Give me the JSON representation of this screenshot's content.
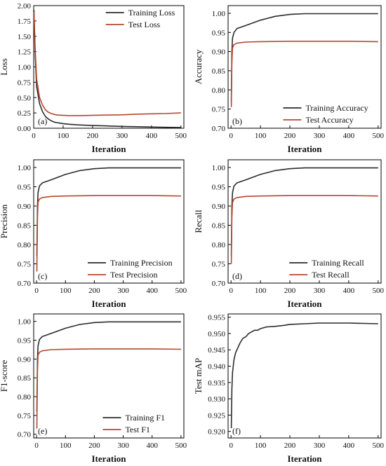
{
  "colors": {
    "train": "#2b2b2b",
    "test": "#b5482f",
    "axis": "#000000"
  },
  "chart_data": [
    {
      "type": "line",
      "tag": "(a)",
      "xlabel": "Iteration",
      "ylabel": "Loss",
      "xlim": [
        0,
        510
      ],
      "ylim": [
        0,
        2.0
      ],
      "xticks": [
        "0",
        "100",
        "200",
        "300",
        "400",
        "500"
      ],
      "yticks": [
        "0.00",
        "0.25",
        "0.50",
        "0.75",
        "1.00",
        "1.25",
        "1.50",
        "1.75",
        "2.00"
      ],
      "legend": "top-right",
      "series": [
        {
          "name": "Training Loss",
          "color": "#2b2b2b",
          "x": [
            1,
            5,
            10,
            20,
            30,
            40,
            50,
            60,
            70,
            80,
            100,
            120,
            150,
            200,
            250,
            300,
            350,
            400,
            450,
            500
          ],
          "y": [
            1.93,
            1.2,
            0.68,
            0.4,
            0.27,
            0.19,
            0.15,
            0.12,
            0.1,
            0.09,
            0.075,
            0.065,
            0.055,
            0.045,
            0.038,
            0.03,
            0.025,
            0.02,
            0.015,
            0.012
          ]
        },
        {
          "name": "Test Loss",
          "color": "#b5482f",
          "x": [
            1,
            5,
            10,
            20,
            30,
            40,
            50,
            60,
            70,
            80,
            100,
            120,
            150,
            200,
            250,
            300,
            350,
            400,
            450,
            500
          ],
          "y": [
            1.9,
            1.3,
            0.8,
            0.5,
            0.38,
            0.3,
            0.26,
            0.24,
            0.225,
            0.215,
            0.21,
            0.205,
            0.205,
            0.21,
            0.215,
            0.22,
            0.23,
            0.235,
            0.24,
            0.25
          ]
        }
      ]
    },
    {
      "type": "line",
      "tag": "(b)",
      "xlabel": "Iteration",
      "ylabel": "Accuracy",
      "xlim": [
        -10,
        510
      ],
      "ylim": [
        0.7,
        1.02
      ],
      "xticks": [
        "0",
        "100",
        "200",
        "300",
        "400",
        "500"
      ],
      "yticks": [
        "0.70",
        "0.75",
        "0.80",
        "0.85",
        "0.90",
        "0.95",
        "1.00"
      ],
      "legend": "bottom-right",
      "series": [
        {
          "name": "Training Accuracy",
          "color": "#2b2b2b",
          "x": [
            1,
            3,
            5,
            10,
            20,
            50,
            100,
            150,
            200,
            250,
            300,
            400,
            500
          ],
          "y": [
            0.77,
            0.9,
            0.935,
            0.95,
            0.96,
            0.968,
            0.982,
            0.992,
            0.997,
            0.999,
            0.999,
            0.999,
            0.999
          ]
        },
        {
          "name": "Test Accuracy",
          "color": "#b5482f",
          "x": [
            1,
            3,
            5,
            10,
            20,
            50,
            100,
            200,
            300,
            400,
            500
          ],
          "y": [
            0.755,
            0.87,
            0.91,
            0.918,
            0.922,
            0.925,
            0.926,
            0.927,
            0.927,
            0.927,
            0.926
          ]
        }
      ]
    },
    {
      "type": "line",
      "tag": "(c)",
      "xlabel": "Iteration",
      "ylabel": "Precision",
      "xlim": [
        -10,
        510
      ],
      "ylim": [
        0.7,
        1.02
      ],
      "xticks": [
        "0",
        "100",
        "200",
        "300",
        "400",
        "500"
      ],
      "yticks": [
        "0.70",
        "0.75",
        "0.80",
        "0.85",
        "0.90",
        "0.95",
        "1.00"
      ],
      "legend": "bottom-right",
      "series": [
        {
          "name": "Training Precision",
          "color": "#2b2b2b",
          "x": [
            1,
            3,
            5,
            10,
            20,
            50,
            100,
            150,
            200,
            250,
            300,
            400,
            500
          ],
          "y": [
            0.77,
            0.9,
            0.935,
            0.952,
            0.96,
            0.968,
            0.982,
            0.992,
            0.997,
            0.999,
            0.999,
            0.999,
            0.999
          ]
        },
        {
          "name": "Test Precision",
          "color": "#b5482f",
          "x": [
            1,
            3,
            5,
            10,
            20,
            50,
            100,
            200,
            300,
            400,
            500
          ],
          "y": [
            0.73,
            0.87,
            0.91,
            0.918,
            0.922,
            0.925,
            0.926,
            0.927,
            0.927,
            0.927,
            0.926
          ]
        }
      ]
    },
    {
      "type": "line",
      "tag": "(d)",
      "xlabel": "Iteration",
      "ylabel": "Recall",
      "xlim": [
        -10,
        510
      ],
      "ylim": [
        0.7,
        1.02
      ],
      "xticks": [
        "0",
        "100",
        "200",
        "300",
        "400",
        "500"
      ],
      "yticks": [
        "0.70",
        "0.75",
        "0.80",
        "0.85",
        "0.90",
        "0.95",
        "1.00"
      ],
      "legend": "bottom-right",
      "series": [
        {
          "name": "Training Recall",
          "color": "#2b2b2b",
          "x": [
            1,
            3,
            5,
            10,
            20,
            50,
            100,
            150,
            200,
            250,
            300,
            400,
            500
          ],
          "y": [
            0.77,
            0.9,
            0.935,
            0.952,
            0.96,
            0.968,
            0.982,
            0.992,
            0.997,
            0.999,
            0.999,
            0.999,
            0.999
          ]
        },
        {
          "name": "Test Recall",
          "color": "#b5482f",
          "x": [
            1,
            3,
            5,
            10,
            20,
            50,
            100,
            200,
            300,
            400,
            500
          ],
          "y": [
            0.75,
            0.87,
            0.91,
            0.918,
            0.922,
            0.925,
            0.926,
            0.927,
            0.927,
            0.927,
            0.926
          ]
        }
      ]
    },
    {
      "type": "line",
      "tag": "(e)",
      "xlabel": "Iteration",
      "ylabel": "F1-score",
      "xlim": [
        -10,
        510
      ],
      "ylim": [
        0.69,
        1.02
      ],
      "xticks": [
        "0",
        "100",
        "200",
        "300",
        "400",
        "500"
      ],
      "yticks": [
        "0.70",
        "0.75",
        "0.80",
        "0.85",
        "0.90",
        "0.95",
        "1.00"
      ],
      "legend": "bottom-right",
      "series": [
        {
          "name": "Training F1",
          "color": "#2b2b2b",
          "x": [
            1,
            3,
            5,
            10,
            20,
            50,
            100,
            150,
            200,
            250,
            300,
            400,
            500
          ],
          "y": [
            0.76,
            0.9,
            0.935,
            0.952,
            0.96,
            0.968,
            0.982,
            0.992,
            0.997,
            0.999,
            0.999,
            0.999,
            0.999
          ]
        },
        {
          "name": "Test F1",
          "color": "#b5482f",
          "x": [
            1,
            3,
            5,
            10,
            20,
            50,
            100,
            200,
            300,
            400,
            500
          ],
          "y": [
            0.715,
            0.87,
            0.91,
            0.918,
            0.922,
            0.925,
            0.926,
            0.927,
            0.927,
            0.927,
            0.926
          ]
        }
      ]
    },
    {
      "type": "line",
      "tag": "(f)",
      "xlabel": "Iteration",
      "ylabel": "Test mAP",
      "xlim": [
        -10,
        510
      ],
      "ylim": [
        0.918,
        0.956
      ],
      "xticks": [
        "0",
        "100",
        "200",
        "300",
        "400",
        "500"
      ],
      "yticks": [
        "0.920",
        "0.925",
        "0.930",
        "0.935",
        "0.940",
        "0.945",
        "0.950",
        "0.955"
      ],
      "legend": "none",
      "series": [
        {
          "name": "",
          "color": "#2b2b2b",
          "x": [
            1,
            3,
            5,
            10,
            15,
            20,
            30,
            40,
            50,
            60,
            70,
            80,
            90,
            100,
            120,
            150,
            180,
            200,
            250,
            300,
            350,
            400,
            450,
            500
          ],
          "y": [
            0.921,
            0.933,
            0.938,
            0.942,
            0.944,
            0.945,
            0.947,
            0.9485,
            0.949,
            0.95,
            0.9505,
            0.951,
            0.951,
            0.9515,
            0.952,
            0.9522,
            0.9525,
            0.9528,
            0.953,
            0.9532,
            0.9532,
            0.9532,
            0.9531,
            0.953
          ]
        }
      ]
    }
  ]
}
